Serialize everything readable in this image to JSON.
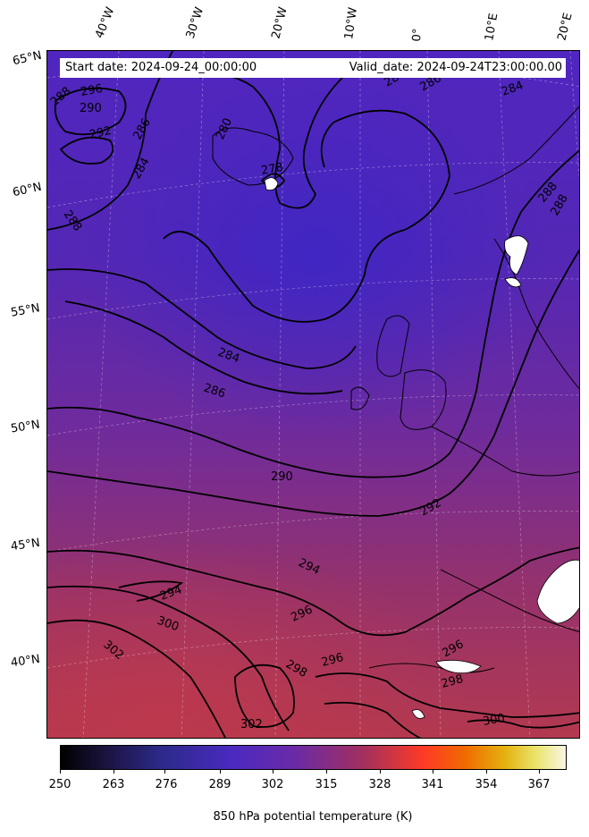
{
  "header": {
    "start_date": "Start date: 2024-09-24_00:00:00",
    "valid_date": "Valid_date: 2024-09-24T23:00:00.00"
  },
  "longitude_labels": [
    "40°W",
    "30°W",
    "20°W",
    "10°W",
    "0°",
    "10°E",
    "20°E"
  ],
  "latitude_labels": [
    "65°N",
    "60°N",
    "55°N",
    "50°N",
    "45°N",
    "40°N"
  ],
  "contour_labels": [
    "296",
    "288",
    "290",
    "292",
    "286",
    "284",
    "280",
    "278",
    "288",
    "284",
    "286",
    "288",
    "284",
    "286",
    "288",
    "290",
    "292",
    "294",
    "294",
    "296",
    "300",
    "302",
    "298",
    "296",
    "296",
    "298",
    "300",
    "302",
    "284"
  ],
  "colorbar": {
    "ticks": [
      "250",
      "263",
      "276",
      "289",
      "302",
      "315",
      "328",
      "341",
      "354",
      "367"
    ],
    "title": "850 hPa potential temperature (K)",
    "colormap_stops": [
      "#000000",
      "#2d2a8a",
      "#4b2ac0",
      "#a2305e",
      "#ff3b24",
      "#e4b210",
      "#f8f6e4"
    ]
  }
}
